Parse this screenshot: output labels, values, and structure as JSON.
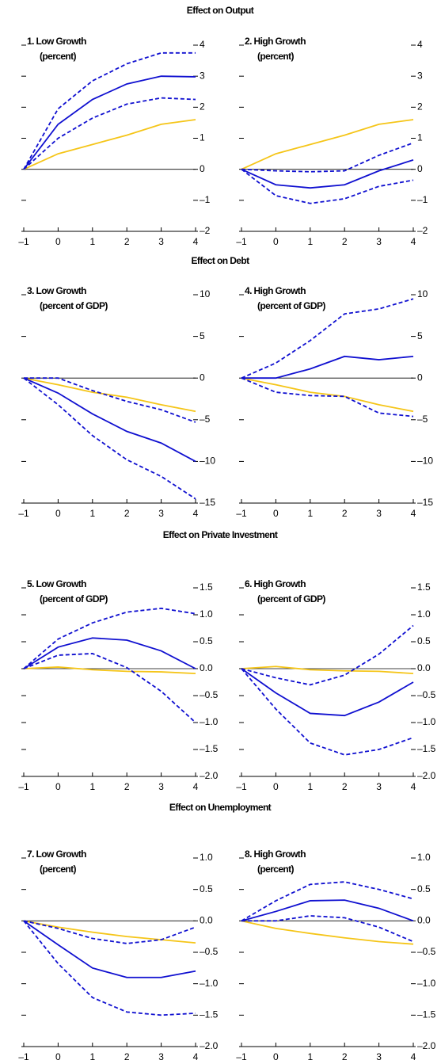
{
  "section_titles": [
    "Effect on Output",
    "Effect on Debt",
    "Effect on Private Investment",
    "Effect on Unemployment"
  ],
  "chart_data": [
    {
      "type": "line",
      "title": "1. Low Growth",
      "subtitle": "(percent)",
      "x": [
        -1,
        0,
        1,
        2,
        3,
        4
      ],
      "xlim": [
        -1,
        4
      ],
      "xticks": [
        {
          "value": -1,
          "label": "–1"
        },
        0,
        1,
        2,
        3,
        4
      ],
      "ylim": [
        -2,
        4
      ],
      "yticks": [
        4,
        3,
        2,
        1,
        0,
        {
          "value": -1,
          "label": "–1"
        },
        {
          "value": -2,
          "label": "–2"
        }
      ],
      "series": [
        {
          "color": "#f5c518",
          "dash": false,
          "values": [
            0,
            0.5,
            0.8,
            1.1,
            1.45,
            1.6
          ]
        },
        {
          "color": "#1010d0",
          "dash": false,
          "values": [
            0,
            1.45,
            2.25,
            2.75,
            3.0,
            2.98
          ]
        },
        {
          "color": "#1010d0",
          "dash": true,
          "values": [
            0,
            1.95,
            2.85,
            3.4,
            3.75,
            3.75
          ]
        },
        {
          "color": "#1010d0",
          "dash": true,
          "values": [
            0,
            1.0,
            1.65,
            2.1,
            2.3,
            2.25
          ]
        }
      ]
    },
    {
      "type": "line",
      "title": "2. High Growth",
      "subtitle": "(percent)",
      "x": [
        -1,
        0,
        1,
        2,
        3,
        4
      ],
      "xlim": [
        -1,
        4
      ],
      "xticks": [
        {
          "value": -1,
          "label": "–1"
        },
        0,
        1,
        2,
        3,
        4
      ],
      "ylim": [
        -2,
        4
      ],
      "yticks": [
        4,
        3,
        2,
        1,
        0,
        {
          "value": -1,
          "label": "–1"
        },
        {
          "value": -2,
          "label": "–2"
        }
      ],
      "series": [
        {
          "color": "#f5c518",
          "dash": false,
          "values": [
            0,
            0.5,
            0.8,
            1.1,
            1.45,
            1.6
          ]
        },
        {
          "color": "#1010d0",
          "dash": false,
          "values": [
            0,
            -0.5,
            -0.6,
            -0.5,
            -0.05,
            0.3
          ]
        },
        {
          "color": "#1010d0",
          "dash": true,
          "values": [
            0,
            -0.05,
            -0.08,
            -0.05,
            0.45,
            0.85
          ]
        },
        {
          "color": "#1010d0",
          "dash": true,
          "values": [
            0,
            -0.85,
            -1.1,
            -0.95,
            -0.55,
            -0.35
          ]
        }
      ]
    },
    {
      "type": "line",
      "title": "3. Low Growth",
      "subtitle": "(percent of GDP)",
      "x": [
        -1,
        0,
        1,
        2,
        3,
        4
      ],
      "xlim": [
        -1,
        4
      ],
      "xticks": [
        {
          "value": -1,
          "label": "–1"
        },
        0,
        1,
        2,
        3,
        4
      ],
      "ylim": [
        -15,
        10
      ],
      "yticks": [
        10,
        5,
        0,
        {
          "value": -5,
          "label": "–5"
        },
        {
          "value": -10,
          "label": "–10"
        },
        {
          "value": -15,
          "label": "–15"
        }
      ],
      "series": [
        {
          "color": "#f5c518",
          "dash": false,
          "values": [
            0,
            -0.8,
            -1.7,
            -2.3,
            -3.2,
            -4.0
          ]
        },
        {
          "color": "#1010d0",
          "dash": false,
          "values": [
            0,
            -1.8,
            -4.3,
            -6.4,
            -7.8,
            -10.0
          ]
        },
        {
          "color": "#1010d0",
          "dash": true,
          "values": [
            0,
            0,
            -1.5,
            -2.8,
            -3.8,
            -5.3
          ]
        },
        {
          "color": "#1010d0",
          "dash": true,
          "values": [
            0,
            -3.2,
            -6.9,
            -9.8,
            -11.8,
            -14.5
          ]
        }
      ]
    },
    {
      "type": "line",
      "title": "4. High Growth",
      "subtitle": "(percent of GDP)",
      "x": [
        -1,
        0,
        1,
        2,
        3,
        4
      ],
      "xlim": [
        -1,
        4
      ],
      "xticks": [
        {
          "value": -1,
          "label": "–1"
        },
        0,
        1,
        2,
        3,
        4
      ],
      "ylim": [
        -15,
        10
      ],
      "yticks": [
        10,
        5,
        0,
        {
          "value": -5,
          "label": "–5"
        },
        {
          "value": -10,
          "label": "–10"
        },
        {
          "value": -15,
          "label": "–15"
        }
      ],
      "series": [
        {
          "color": "#f5c518",
          "dash": false,
          "values": [
            0,
            -0.8,
            -1.7,
            -2.2,
            -3.2,
            -4.0
          ]
        },
        {
          "color": "#1010d0",
          "dash": false,
          "values": [
            0,
            0,
            1.1,
            2.6,
            2.2,
            2.6
          ]
        },
        {
          "color": "#1010d0",
          "dash": true,
          "values": [
            0,
            1.8,
            4.5,
            7.7,
            8.3,
            9.5
          ]
        },
        {
          "color": "#1010d0",
          "dash": true,
          "values": [
            0,
            -1.7,
            -2.1,
            -2.2,
            -4.2,
            -4.6
          ]
        }
      ]
    },
    {
      "type": "line",
      "title": "5. Low Growth",
      "subtitle": "(percent of GDP)",
      "x": [
        -1,
        0,
        1,
        2,
        3,
        4
      ],
      "xlim": [
        -1,
        4
      ],
      "xticks": [
        {
          "value": -1,
          "label": "–1"
        },
        0,
        1,
        2,
        3,
        4
      ],
      "ylim": [
        -2,
        1.5
      ],
      "yticks": [
        1.5,
        {
          "value": 1,
          "label": "1.0"
        },
        0.5,
        {
          "value": 0,
          "label": "0.0"
        },
        {
          "value": -0.5,
          "label": "–0.5"
        },
        {
          "value": -1,
          "label": "–1.0"
        },
        {
          "value": -1.5,
          "label": "–1.5"
        },
        {
          "value": -2,
          "label": "–2.0"
        }
      ],
      "series": [
        {
          "color": "#f5c518",
          "dash": false,
          "values": [
            0,
            0.03,
            -0.02,
            -0.05,
            -0.06,
            -0.09
          ]
        },
        {
          "color": "#1010d0",
          "dash": false,
          "values": [
            0,
            0.4,
            0.57,
            0.53,
            0.33,
            0
          ]
        },
        {
          "color": "#1010d0",
          "dash": true,
          "values": [
            0,
            0.55,
            0.85,
            1.05,
            1.12,
            1.02
          ]
        },
        {
          "color": "#1010d0",
          "dash": true,
          "values": [
            0,
            0.25,
            0.28,
            0.02,
            -0.42,
            -1.0
          ]
        }
      ]
    },
    {
      "type": "line",
      "title": "6. High Growth",
      "subtitle": "(percent of GDP)",
      "x": [
        -1,
        0,
        1,
        2,
        3,
        4
      ],
      "xlim": [
        -1,
        4
      ],
      "xticks": [
        {
          "value": -1,
          "label": "–1"
        },
        0,
        1,
        2,
        3,
        4
      ],
      "ylim": [
        -2,
        1.5
      ],
      "yticks": [
        1.5,
        {
          "value": 1,
          "label": "1.0"
        },
        0.5,
        {
          "value": 0,
          "label": "0.0"
        },
        {
          "value": -0.5,
          "label": "–0.5"
        },
        {
          "value": -1,
          "label": "–1.0"
        },
        {
          "value": -1.5,
          "label": "–1.5"
        },
        {
          "value": -2,
          "label": "–2.0"
        }
      ],
      "series": [
        {
          "color": "#f5c518",
          "dash": false,
          "values": [
            0,
            0.04,
            -0.02,
            -0.04,
            -0.05,
            -0.09
          ]
        },
        {
          "color": "#1010d0",
          "dash": false,
          "values": [
            0,
            -0.45,
            -0.83,
            -0.87,
            -0.62,
            -0.25
          ]
        },
        {
          "color": "#1010d0",
          "dash": true,
          "values": [
            0,
            -0.17,
            -0.3,
            -0.12,
            0.27,
            0.8
          ]
        },
        {
          "color": "#1010d0",
          "dash": true,
          "values": [
            0,
            -0.75,
            -1.38,
            -1.6,
            -1.5,
            -1.28
          ]
        }
      ]
    },
    {
      "type": "line",
      "title": "7. Low Growth",
      "subtitle": "(percent)",
      "x": [
        -1,
        0,
        1,
        2,
        3,
        4
      ],
      "xlim": [
        -1,
        4
      ],
      "xticks": [
        {
          "value": -1,
          "label": "–1"
        },
        0,
        1,
        2,
        3,
        4
      ],
      "ylim": [
        -2,
        1
      ],
      "yticks": [
        {
          "value": 1,
          "label": "1.0"
        },
        0.5,
        {
          "value": 0,
          "label": "0.0"
        },
        {
          "value": -0.5,
          "label": "–0.5"
        },
        {
          "value": -1,
          "label": "–1.0"
        },
        {
          "value": -1.5,
          "label": "–1.5"
        },
        {
          "value": -2,
          "label": "–2.0"
        }
      ],
      "series": [
        {
          "color": "#f5c518",
          "dash": false,
          "values": [
            0,
            -0.1,
            -0.18,
            -0.25,
            -0.3,
            -0.35
          ]
        },
        {
          "color": "#1010d0",
          "dash": false,
          "values": [
            0,
            -0.38,
            -0.75,
            -0.9,
            -0.9,
            -0.8
          ]
        },
        {
          "color": "#1010d0",
          "dash": true,
          "values": [
            0,
            -0.12,
            -0.28,
            -0.36,
            -0.3,
            -0.1
          ]
        },
        {
          "color": "#1010d0",
          "dash": true,
          "values": [
            0,
            -0.68,
            -1.22,
            -1.45,
            -1.5,
            -1.47
          ]
        }
      ]
    },
    {
      "type": "line",
      "title": "8. High Growth",
      "subtitle": "(percent)",
      "x": [
        -1,
        0,
        1,
        2,
        3,
        4
      ],
      "xlim": [
        -1,
        4
      ],
      "xticks": [
        {
          "value": -1,
          "label": "–1"
        },
        0,
        1,
        2,
        3,
        4
      ],
      "ylim": [
        -2,
        1
      ],
      "yticks": [
        {
          "value": 1,
          "label": "1.0"
        },
        0.5,
        {
          "value": 0,
          "label": "0.0"
        },
        {
          "value": -0.5,
          "label": "–0.5"
        },
        {
          "value": -1,
          "label": "–1.0"
        },
        {
          "value": -1.5,
          "label": "–1.5"
        },
        {
          "value": -2,
          "label": "–2.0"
        }
      ],
      "series": [
        {
          "color": "#f5c518",
          "dash": false,
          "values": [
            0,
            -0.12,
            -0.2,
            -0.27,
            -0.33,
            -0.37
          ]
        },
        {
          "color": "#1010d0",
          "dash": false,
          "values": [
            0,
            0.15,
            0.32,
            0.33,
            0.2,
            0
          ]
        },
        {
          "color": "#1010d0",
          "dash": true,
          "values": [
            0,
            0.32,
            0.58,
            0.62,
            0.5,
            0.35
          ]
        },
        {
          "color": "#1010d0",
          "dash": true,
          "values": [
            0,
            0,
            0.08,
            0.05,
            -0.1,
            -0.33
          ]
        }
      ]
    }
  ]
}
